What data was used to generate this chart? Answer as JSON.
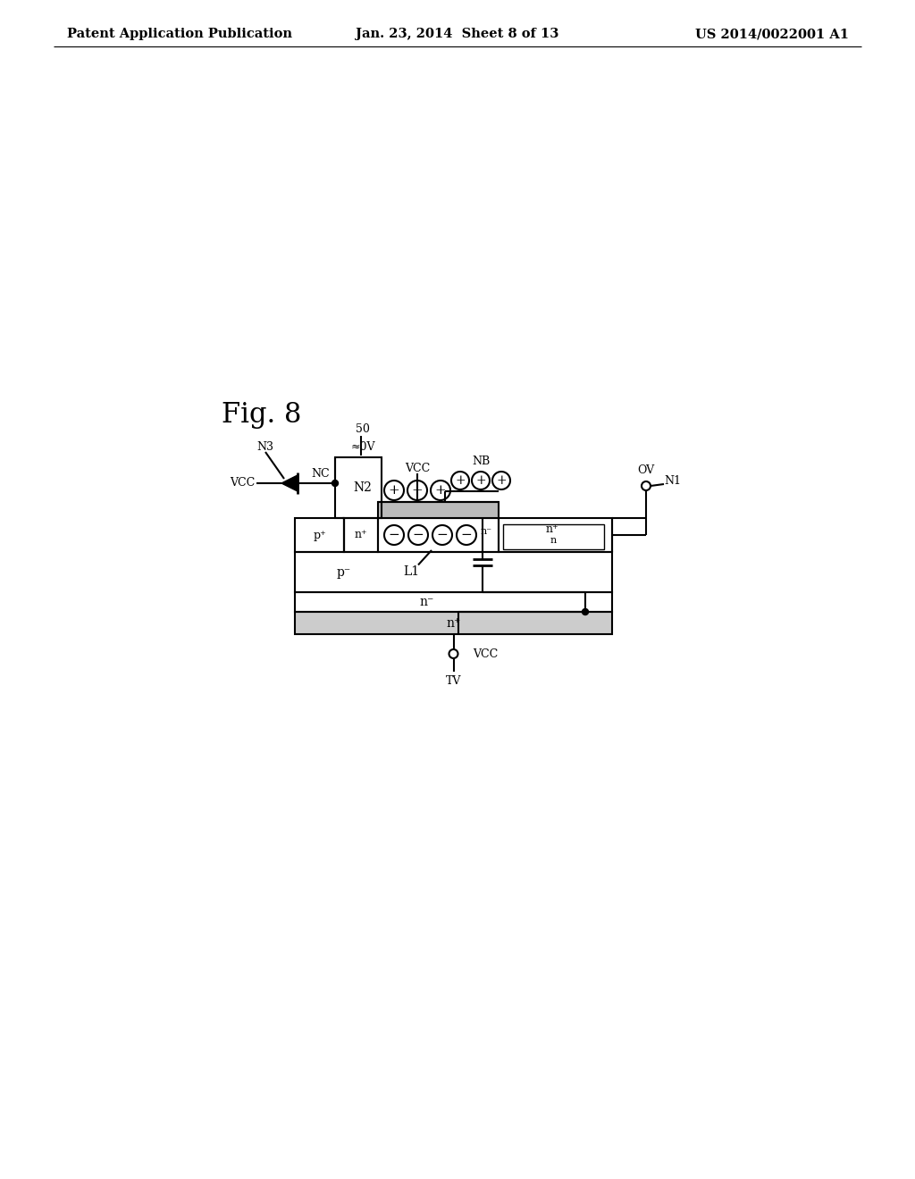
{
  "background_color": "#ffffff",
  "header_left": "Patent Application Publication",
  "header_center": "Jan. 23, 2014  Sheet 8 of 13",
  "header_right": "US 2014/0022001 A1",
  "fig_label": "Fig. 8"
}
